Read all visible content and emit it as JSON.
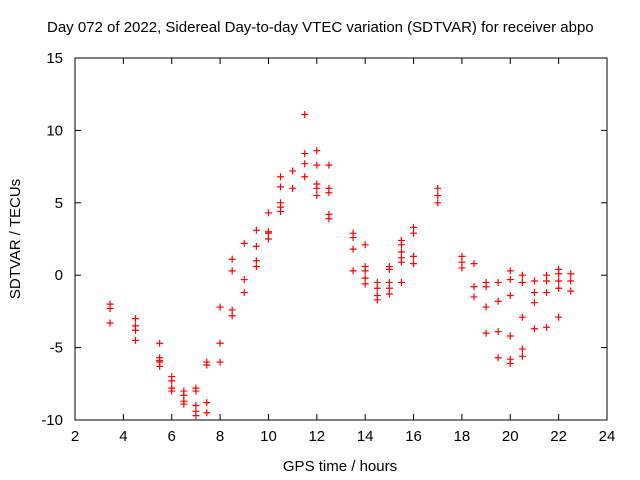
{
  "chart_data": {
    "type": "scatter",
    "title": "Day 072 of 2022, Sidereal Day-to-day VTEC variation (SDTVAR) for receiver abpo",
    "xlabel": "GPS time / hours",
    "ylabel": "SDTVAR / TECUs",
    "xlim": [
      2,
      24
    ],
    "ylim": [
      -10,
      15
    ],
    "xticks": [
      "2",
      "4",
      "6",
      "8",
      "10",
      "12",
      "14",
      "16",
      "18",
      "20",
      "22",
      "24"
    ],
    "yticks": [
      "-10",
      "-5",
      "0",
      "5",
      "10",
      "15"
    ],
    "grid": false,
    "marker": "plus",
    "color": "#ff0000",
    "series": [
      {
        "name": "SDTVAR",
        "points": [
          [
            3.45,
            -2.0
          ],
          [
            3.45,
            -2.3
          ],
          [
            3.45,
            -3.3
          ],
          [
            4.5,
            -3.0
          ],
          [
            4.5,
            -3.5
          ],
          [
            4.5,
            -3.8
          ],
          [
            4.5,
            -4.5
          ],
          [
            5.5,
            -4.7
          ],
          [
            5.5,
            -5.7
          ],
          [
            5.5,
            -6.0
          ],
          [
            5.5,
            -6.3
          ],
          [
            5.5,
            -5.9
          ],
          [
            6.0,
            -7.0
          ],
          [
            6.0,
            -7.3
          ],
          [
            6.0,
            -7.8
          ],
          [
            6.0,
            -8.0
          ],
          [
            6.5,
            -8.0
          ],
          [
            6.5,
            -8.3
          ],
          [
            6.5,
            -8.7
          ],
          [
            6.5,
            -8.9
          ],
          [
            7.0,
            -7.8
          ],
          [
            7.0,
            -8.0
          ],
          [
            7.0,
            -9.0
          ],
          [
            7.0,
            -9.4
          ],
          [
            7.0,
            -9.7
          ],
          [
            7.45,
            -6.0
          ],
          [
            7.45,
            -6.2
          ],
          [
            7.45,
            -8.8
          ],
          [
            7.45,
            -9.5
          ],
          [
            8.0,
            -2.2
          ],
          [
            8.0,
            -4.7
          ],
          [
            8.0,
            -6.0
          ],
          [
            8.5,
            -2.4
          ],
          [
            8.5,
            -2.8
          ],
          [
            8.5,
            0.3
          ],
          [
            8.5,
            1.1
          ],
          [
            9.0,
            -1.2
          ],
          [
            9.0,
            -0.3
          ],
          [
            9.0,
            2.2
          ],
          [
            9.5,
            0.6
          ],
          [
            9.5,
            1.0
          ],
          [
            9.5,
            2.0
          ],
          [
            9.5,
            3.1
          ],
          [
            10.0,
            2.5
          ],
          [
            10.0,
            2.9
          ],
          [
            10.0,
            3.0
          ],
          [
            10.0,
            4.3
          ],
          [
            10.5,
            4.4
          ],
          [
            10.5,
            4.7
          ],
          [
            10.5,
            5.0
          ],
          [
            10.5,
            6.1
          ],
          [
            10.5,
            6.8
          ],
          [
            11.0,
            6.0
          ],
          [
            11.0,
            7.2
          ],
          [
            11.5,
            6.8
          ],
          [
            11.5,
            7.7
          ],
          [
            11.5,
            8.4
          ],
          [
            11.5,
            11.1
          ],
          [
            12.0,
            5.5
          ],
          [
            12.0,
            6.0
          ],
          [
            12.0,
            6.3
          ],
          [
            12.0,
            7.6
          ],
          [
            12.0,
            8.6
          ],
          [
            12.5,
            3.9
          ],
          [
            12.5,
            4.2
          ],
          [
            12.5,
            5.7
          ],
          [
            12.5,
            6.0
          ],
          [
            12.5,
            7.6
          ],
          [
            13.5,
            0.3
          ],
          [
            13.5,
            1.8
          ],
          [
            13.5,
            2.6
          ],
          [
            13.5,
            2.9
          ],
          [
            14.0,
            -0.6
          ],
          [
            14.0,
            -0.2
          ],
          [
            14.0,
            0.3
          ],
          [
            14.0,
            0.6
          ],
          [
            14.0,
            2.1
          ],
          [
            14.5,
            -1.7
          ],
          [
            14.5,
            -1.4
          ],
          [
            14.5,
            -0.9
          ],
          [
            14.5,
            -0.5
          ],
          [
            15.0,
            -1.3
          ],
          [
            15.0,
            -0.9
          ],
          [
            15.0,
            -0.5
          ],
          [
            15.0,
            0.4
          ],
          [
            15.0,
            0.6
          ],
          [
            15.5,
            -0.5
          ],
          [
            15.5,
            0.9
          ],
          [
            15.5,
            1.2
          ],
          [
            15.5,
            1.6
          ],
          [
            15.5,
            2.1
          ],
          [
            15.5,
            2.4
          ],
          [
            16.0,
            0.8
          ],
          [
            16.0,
            1.3
          ],
          [
            16.0,
            2.9
          ],
          [
            16.0,
            3.3
          ],
          [
            17.0,
            5.0
          ],
          [
            17.0,
            5.5
          ],
          [
            17.0,
            6.0
          ],
          [
            18.0,
            0.5
          ],
          [
            18.0,
            0.9
          ],
          [
            18.0,
            1.3
          ],
          [
            18.5,
            -1.5
          ],
          [
            18.5,
            -0.8
          ],
          [
            18.5,
            0.8
          ],
          [
            19.0,
            -4.0
          ],
          [
            19.0,
            -2.2
          ],
          [
            19.0,
            -0.8
          ],
          [
            19.0,
            -0.5
          ],
          [
            19.5,
            -5.7
          ],
          [
            19.5,
            -3.9
          ],
          [
            19.5,
            -1.8
          ],
          [
            19.5,
            -0.5
          ],
          [
            20.0,
            -6.1
          ],
          [
            20.0,
            -5.8
          ],
          [
            20.0,
            -4.2
          ],
          [
            20.0,
            -1.4
          ],
          [
            20.0,
            -0.3
          ],
          [
            20.0,
            0.3
          ],
          [
            20.5,
            -5.6
          ],
          [
            20.5,
            -5.1
          ],
          [
            20.5,
            -2.9
          ],
          [
            20.5,
            -0.5
          ],
          [
            20.5,
            0.0
          ],
          [
            21.0,
            -3.7
          ],
          [
            21.0,
            -1.9
          ],
          [
            21.0,
            -1.2
          ],
          [
            21.0,
            -0.4
          ],
          [
            21.5,
            -3.6
          ],
          [
            21.5,
            -1.2
          ],
          [
            21.5,
            -0.4
          ],
          [
            21.5,
            0.0
          ],
          [
            22.0,
            -2.9
          ],
          [
            22.0,
            -0.9
          ],
          [
            22.0,
            -0.4
          ],
          [
            22.0,
            0.1
          ],
          [
            22.0,
            0.4
          ],
          [
            22.5,
            -1.1
          ],
          [
            22.5,
            -0.4
          ],
          [
            22.5,
            0.1
          ]
        ]
      }
    ]
  }
}
